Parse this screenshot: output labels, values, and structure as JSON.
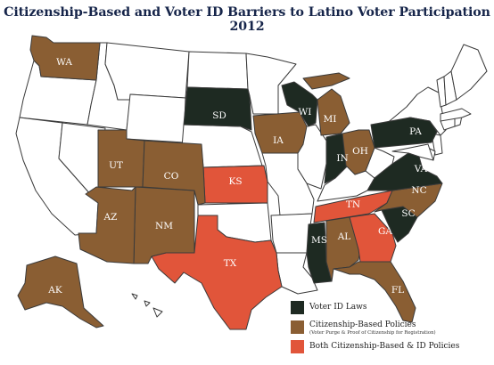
{
  "title": "Citizenship-Based and Voter ID Barriers to Latino Voter Participation 2012",
  "colors": {
    "voter_id": "#1e2a22",
    "citizenship": "#8a5e33",
    "both": "#e1553a",
    "none": "#ffffff",
    "border": "#3a3a3a"
  },
  "legend": {
    "voter_id_label": "Voter ID Laws",
    "citizenship_label": "Citizenship-Based Policies",
    "citizenship_sublabel": "(Voter Purge & Proof of Citizenship for Registration)",
    "both_label": "Both Citizenship-Based & ID Policies"
  },
  "states": [
    {
      "abbr": "WA",
      "category": "citizenship"
    },
    {
      "abbr": "UT",
      "category": "citizenship"
    },
    {
      "abbr": "CO",
      "category": "citizenship"
    },
    {
      "abbr": "AZ",
      "category": "citizenship"
    },
    {
      "abbr": "NM",
      "category": "citizenship"
    },
    {
      "abbr": "AK",
      "category": "citizenship"
    },
    {
      "abbr": "IA",
      "category": "citizenship"
    },
    {
      "abbr": "MI",
      "category": "citizenship"
    },
    {
      "abbr": "OH",
      "category": "citizenship"
    },
    {
      "abbr": "NC",
      "category": "citizenship"
    },
    {
      "abbr": "AL",
      "category": "citizenship"
    },
    {
      "abbr": "FL",
      "category": "citizenship"
    },
    {
      "abbr": "SD",
      "category": "voter_id"
    },
    {
      "abbr": "WI",
      "category": "voter_id"
    },
    {
      "abbr": "IN",
      "category": "voter_id"
    },
    {
      "abbr": "PA",
      "category": "voter_id"
    },
    {
      "abbr": "VA",
      "category": "voter_id"
    },
    {
      "abbr": "SC",
      "category": "voter_id"
    },
    {
      "abbr": "MS",
      "category": "voter_id"
    },
    {
      "abbr": "KS",
      "category": "both"
    },
    {
      "abbr": "TX",
      "category": "both"
    },
    {
      "abbr": "TN",
      "category": "both"
    },
    {
      "abbr": "GA",
      "category": "both"
    }
  ]
}
